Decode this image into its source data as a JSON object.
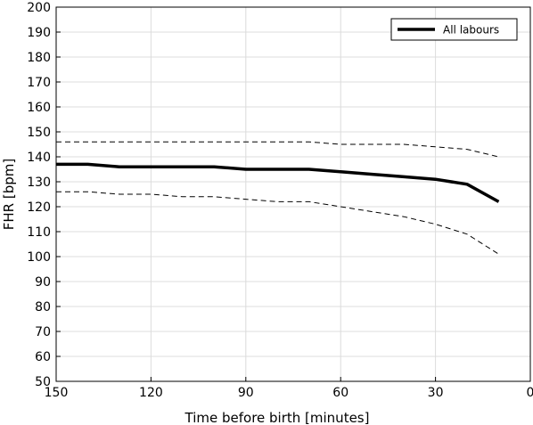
{
  "chart_data": {
    "type": "line",
    "xlabel": "Time before birth [minutes]",
    "ylabel": "FHR [bpm]",
    "xlim": [
      150,
      0
    ],
    "ylim": [
      50,
      200
    ],
    "x_reversed": true,
    "xticks": [
      150,
      120,
      90,
      60,
      30,
      0
    ],
    "yticks": [
      50,
      60,
      70,
      80,
      90,
      100,
      110,
      120,
      130,
      140,
      150,
      160,
      170,
      180,
      190,
      200
    ],
    "grid": true,
    "legend_position": "top-right",
    "series": [
      {
        "name": "All labours",
        "style": "solid-thick",
        "color": "#000000",
        "x": [
          150,
          140,
          130,
          120,
          110,
          100,
          90,
          80,
          70,
          60,
          50,
          40,
          30,
          20,
          10
        ],
        "y": [
          137,
          137,
          136,
          136,
          136,
          136,
          135,
          135,
          135,
          134,
          133,
          132,
          131,
          129,
          122
        ]
      },
      {
        "style": "dashed",
        "color": "#000000",
        "x": [
          150,
          140,
          130,
          120,
          110,
          100,
          90,
          80,
          70,
          60,
          50,
          40,
          30,
          20,
          10
        ],
        "y": [
          146,
          146,
          146,
          146,
          146,
          146,
          146,
          146,
          146,
          145,
          145,
          145,
          144,
          143,
          140
        ]
      },
      {
        "style": "dashed",
        "color": "#000000",
        "x": [
          150,
          140,
          130,
          120,
          110,
          100,
          90,
          80,
          70,
          60,
          50,
          40,
          30,
          20,
          10
        ],
        "y": [
          126,
          126,
          125,
          125,
          124,
          124,
          123,
          122,
          122,
          120,
          118,
          116,
          113,
          109,
          101
        ]
      }
    ]
  }
}
